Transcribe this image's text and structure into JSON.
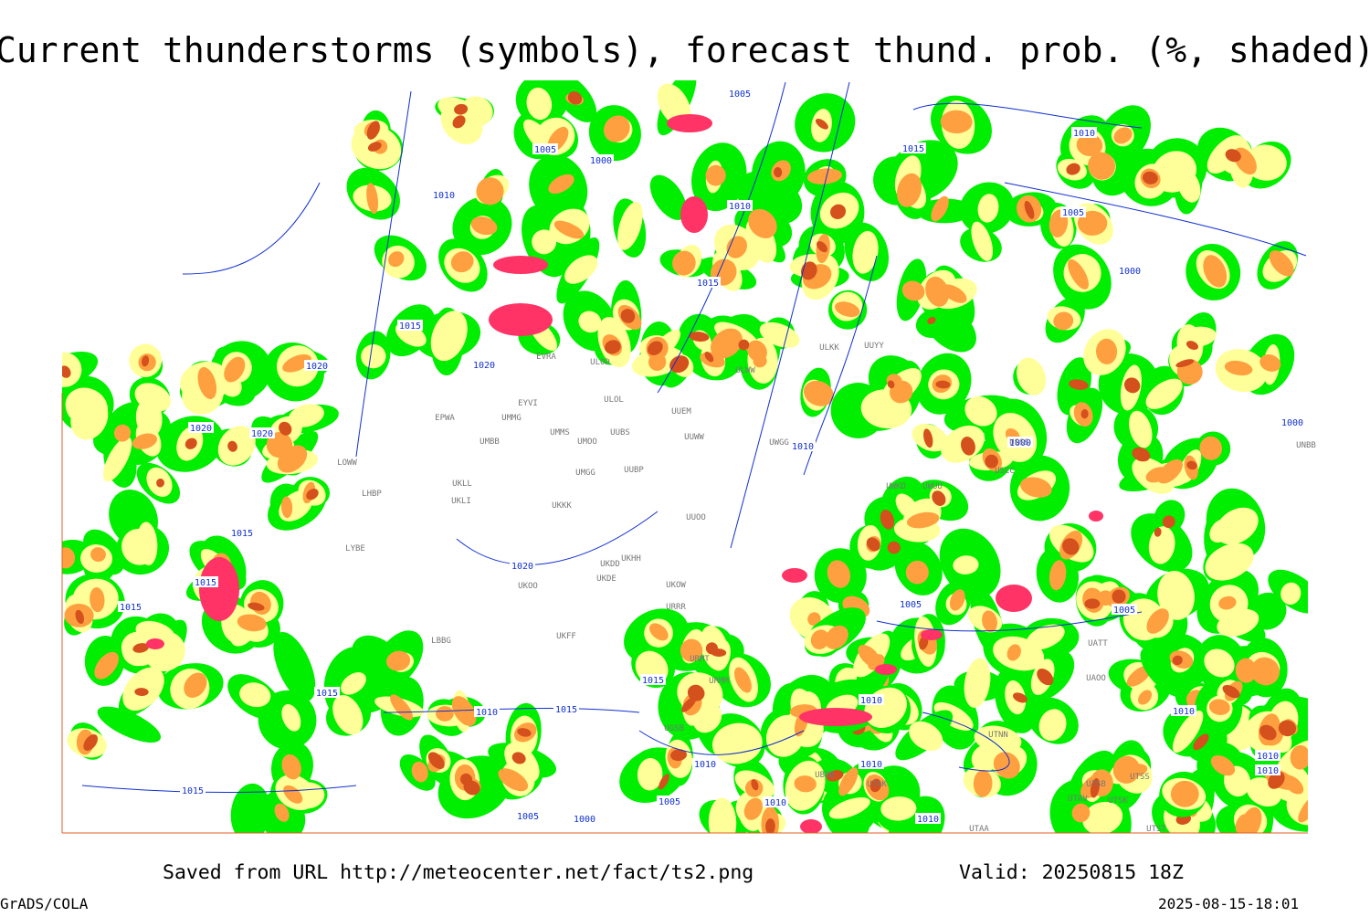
{
  "header": {
    "title": "Current thunderstorms (symbols), forecast thund. prob. (%, shaded)"
  },
  "footer": {
    "source": "Saved from URL http://meteocenter.net/fact/ts2.png",
    "valid": "Valid: 20250815 18Z",
    "software": "GrADS/COLA",
    "timestamp": "2025-08-15-18:01"
  },
  "isobar_labels": [
    "1005",
    "1005",
    "1000",
    "1010",
    "1010",
    "1015",
    "1015",
    "1020",
    "1020",
    "1020",
    "1020",
    "1015",
    "1015",
    "1015",
    "1020",
    "1015",
    "1015",
    "1010",
    "1015",
    "1010",
    "1015",
    "1005",
    "1000",
    "1005",
    "1010",
    "1010",
    "1010",
    "1010",
    "1005",
    "1005",
    "1000",
    "1000",
    "1005",
    "1010",
    "1015",
    "1000",
    "1010",
    "1010",
    "1010",
    "1010"
  ],
  "stations": [
    "EVRA",
    "ULOD",
    "ULOL",
    "EYVI",
    "EPWA",
    "UMMG",
    "UMMS",
    "UMOO",
    "UUBS",
    "UUEM",
    "UUWW",
    "UMBB",
    "UMGG",
    "UUBP",
    "UKLL",
    "UKLI",
    "UKKK",
    "LOWW",
    "LHBP",
    "LYBE",
    "UKDD",
    "UKHH",
    "UKDE",
    "UKOO",
    "UKOW",
    "URRR",
    "UKFF",
    "LBBG",
    "URMT",
    "URMM",
    "UGSB",
    "UBBB",
    "UTAK",
    "UTNN",
    "UTAA",
    "UTAV",
    "UTSB",
    "UTSS",
    "UTSK",
    "UTST",
    "ULKK",
    "UUYY",
    "ULWW",
    "UUOO",
    "UWGG",
    "USSS",
    "USCC",
    "UWUU",
    "UWKD",
    "UATT",
    "UAOO",
    "UNBB"
  ]
}
